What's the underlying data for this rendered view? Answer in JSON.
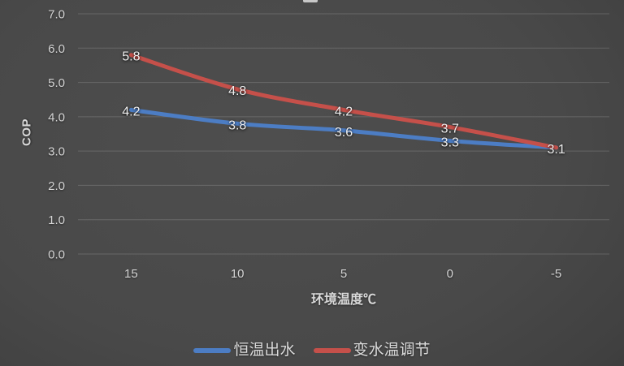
{
  "chart_data": {
    "type": "line",
    "title": "",
    "categories": [
      "15",
      "10",
      "5",
      "0",
      "-5"
    ],
    "series": [
      {
        "name": "恒温出水",
        "color": "#4C7DC4",
        "values": [
          4.2,
          3.8,
          3.6,
          3.3,
          3.1
        ],
        "labels": [
          "4.2",
          "3.8",
          "3.6",
          "3.3",
          ""
        ]
      },
      {
        "name": "变水温调节",
        "color": "#C5504A",
        "values": [
          5.8,
          4.8,
          4.2,
          3.7,
          3.1
        ],
        "labels": [
          "5.8",
          "4.8",
          "4.2",
          "3.7",
          "3.1"
        ]
      }
    ],
    "xlabel": "环境温度℃",
    "ylabel": "COP",
    "ylim": [
      0,
      7
    ],
    "yticks": [
      "0.0",
      "1.0",
      "2.0",
      "3.0",
      "4.0",
      "5.0",
      "6.0",
      "7.0"
    ],
    "grid": true,
    "legend_position": "bottom",
    "colors": {
      "tick_text": "#D5D5D5",
      "axis_title_text": "#D9D9D9",
      "data_label_text": "#EFEFEF",
      "gridline": "rgba(255,255,255,0.16)"
    }
  }
}
